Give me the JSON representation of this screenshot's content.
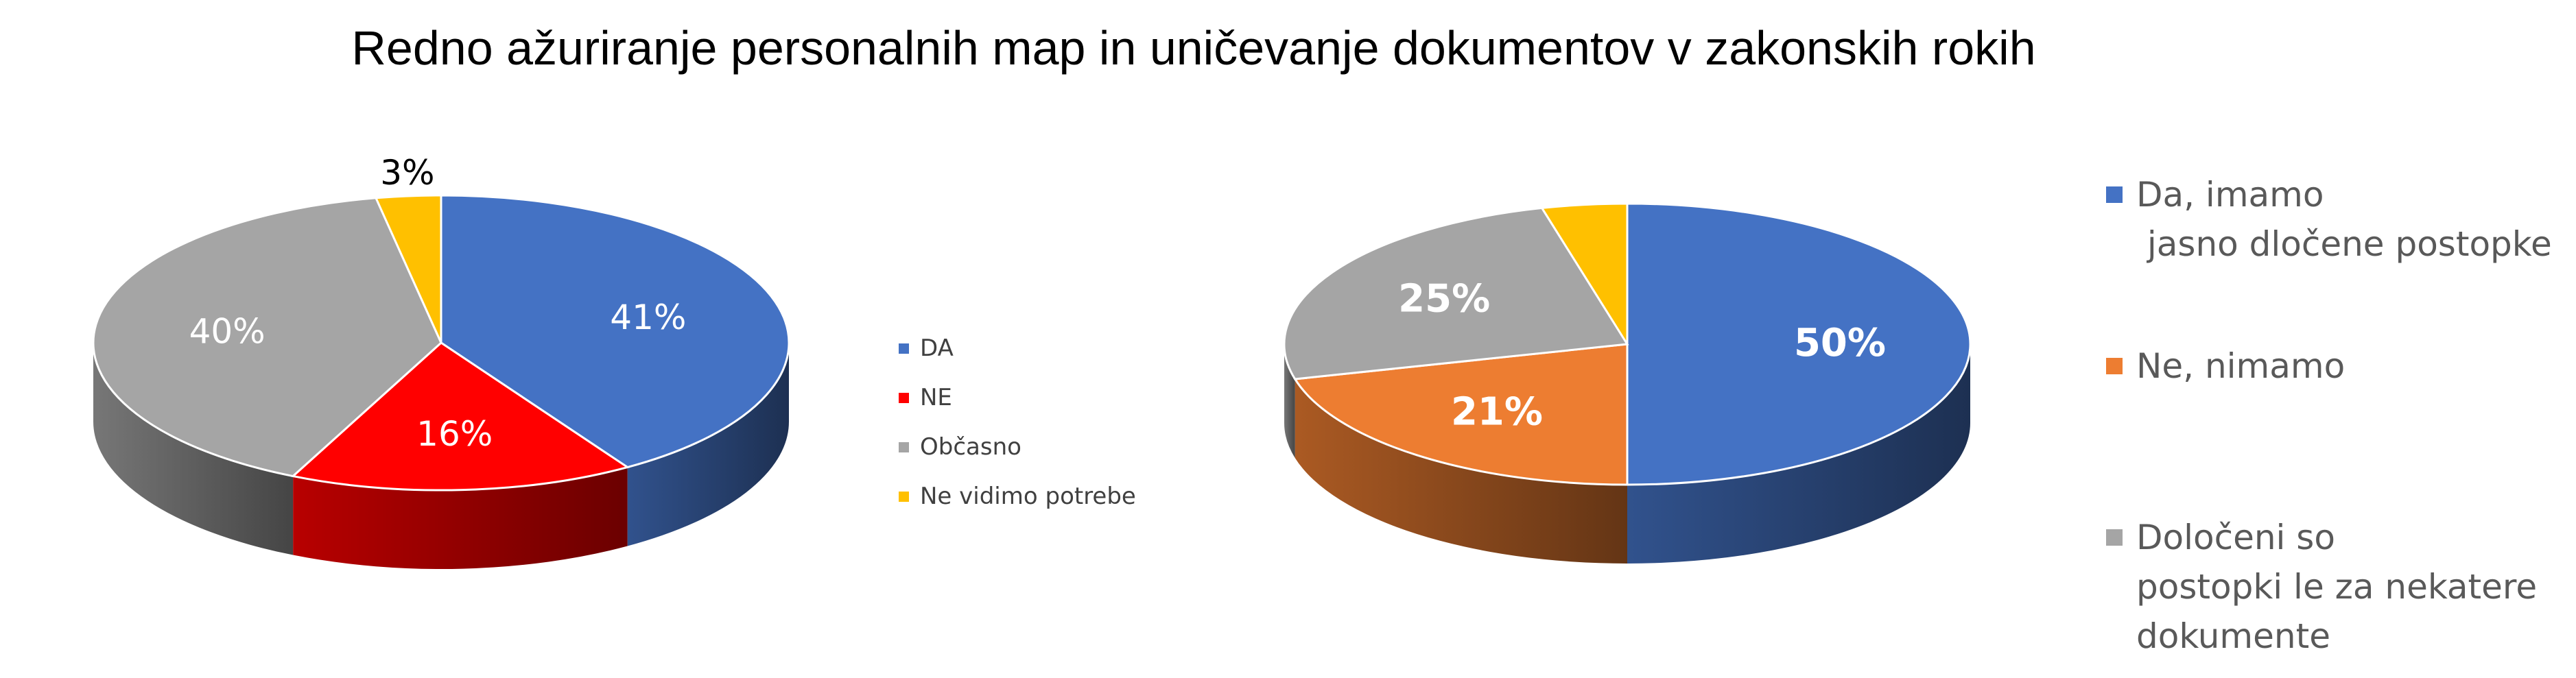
{
  "title": "Redno ažuriranje personalnih map in uničevanje dokumentov v zakonskih rokih",
  "chart_data": [
    {
      "type": "pie",
      "title": "",
      "legend_position": "right",
      "slices": [
        {
          "label": "DA",
          "value": 41,
          "display": "41%",
          "color": "#4472C4"
        },
        {
          "label": "NE",
          "value": 16,
          "display": "16%",
          "color": "#FF0000"
        },
        {
          "label": "Občasno",
          "value": 40,
          "display": "40%",
          "color": "#A5A5A5"
        },
        {
          "label": "Ne vidimo potrebe",
          "value": 3,
          "display": "3%",
          "color": "#FFC000"
        }
      ]
    },
    {
      "type": "pie",
      "title": "",
      "legend_position": "right",
      "slices": [
        {
          "label": "Da, imamo jasno dločene postopke",
          "label_lines": [
            "Da, imamo",
            " jasno dločene postopke"
          ],
          "value": 50,
          "display": "50%",
          "color": "#4472C4"
        },
        {
          "label": "Ne, nimamo",
          "label_lines": [
            "Ne, nimamo"
          ],
          "value": 21,
          "display": "21%",
          "color": "#ED7D31"
        },
        {
          "label": "Določeni so postopki le za nekatere dokumente",
          "label_lines": [
            "Določeni so",
            "postopki le za nekatere",
            "dokumente"
          ],
          "value": 25,
          "display": "25%",
          "color": "#A5A5A5"
        },
        {
          "label": "",
          "label_lines": [],
          "value": 4,
          "display": "",
          "color": "#FFC000"
        }
      ]
    }
  ]
}
